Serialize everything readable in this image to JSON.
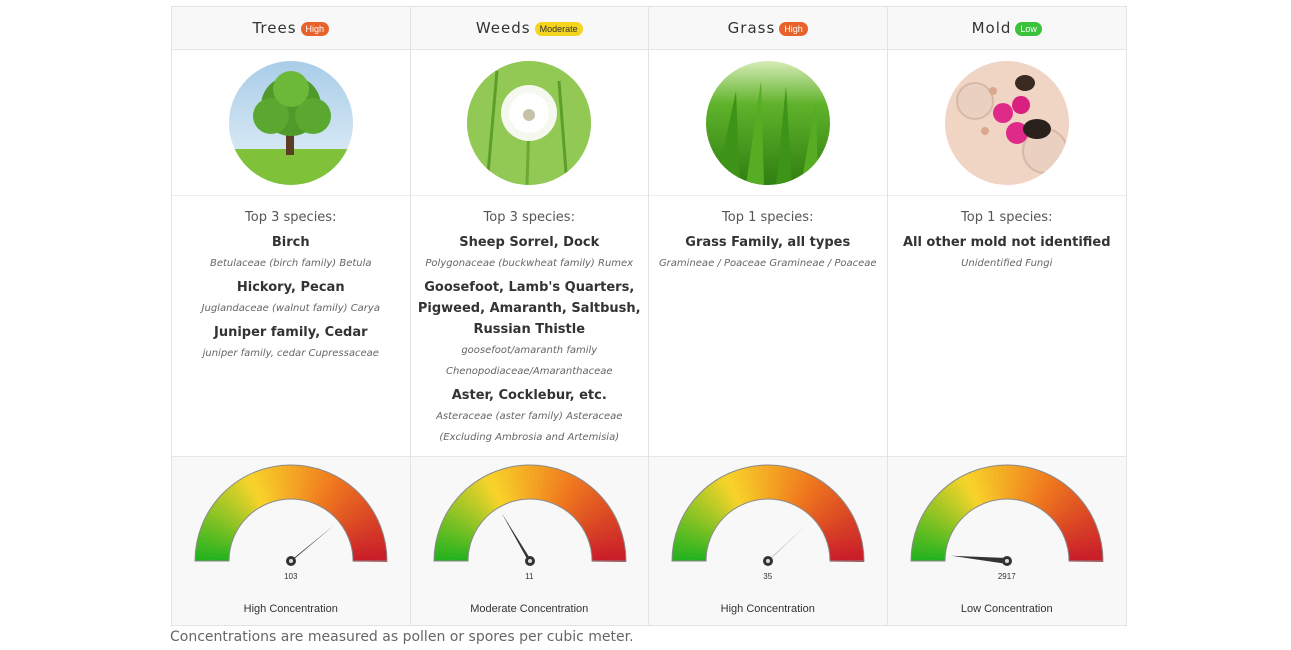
{
  "colors": {
    "high": "#e8622b",
    "moderate": "#f4d41c",
    "low": "#3ac23a",
    "gauge_red": "#c81b2a",
    "gauge_orange": "#f07a1e",
    "gauge_yellow": "#f8d42a",
    "gauge_green": "#1fb21f"
  },
  "categories": [
    {
      "name": "Trees",
      "level": "High",
      "level_key": "high",
      "image": "tree",
      "top_label": "Top 3 species:",
      "species": [
        {
          "name": "Birch",
          "latin": "Betulaceae (birch family) Betula"
        },
        {
          "name": "Hickory, Pecan",
          "latin": "Juglandaceae (walnut family) Carya"
        },
        {
          "name": "Juniper family, Cedar",
          "latin": "juniper family, cedar Cupressaceae"
        }
      ],
      "gauge_value": "103",
      "gauge_fraction": 0.78,
      "concentration": "High Concentration"
    },
    {
      "name": "Weeds",
      "level": "Moderate",
      "level_key": "moderate",
      "image": "dandelion",
      "top_label": "Top 3 species:",
      "species": [
        {
          "name": "Sheep Sorrel, Dock",
          "latin": "Polygonaceae (buckwheat family) Rumex"
        },
        {
          "name": "Goosefoot, Lamb's Quarters, Pigweed, Amaranth, Saltbush, Russian Thistle",
          "latin": "goosefoot/amaranth family Chenopodiaceae/Amaranthaceae"
        },
        {
          "name": "Aster, Cocklebur, etc.",
          "latin": "Asteraceae (aster family) Asteraceae (Excluding Ambrosia and Artemisia)"
        }
      ],
      "gauge_value": "11",
      "gauge_fraction": 0.33,
      "concentration": "Moderate Concentration"
    },
    {
      "name": "Grass",
      "level": "High",
      "level_key": "high",
      "image": "grass",
      "top_label": "Top 1 species:",
      "species": [
        {
          "name": "Grass Family, all types",
          "latin": "Gramineae / Poaceae Gramineae / Poaceae"
        }
      ],
      "gauge_value": "35",
      "gauge_fraction": 0.76,
      "concentration": "High Concentration"
    },
    {
      "name": "Mold",
      "level": "Low",
      "level_key": "low",
      "image": "mold",
      "top_label": "Top 1 species:",
      "species": [
        {
          "name": "All other mold not identified",
          "latin": "Unidentified Fungi"
        }
      ],
      "gauge_value": "2917",
      "gauge_fraction": 0.03,
      "concentration": "Low Concentration"
    }
  ],
  "footer": "Concentrations are measured as pollen or spores per cubic meter."
}
